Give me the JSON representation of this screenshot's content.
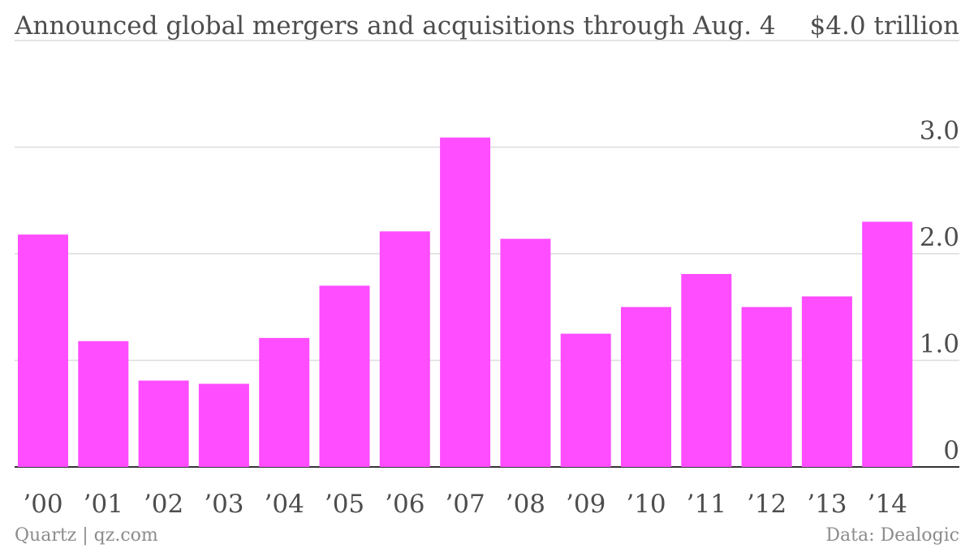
{
  "chart_data": {
    "type": "bar",
    "title": "Announced global mergers and acquisitions through Aug. 4",
    "top_axis_label": "$4.0 trillion",
    "categories": [
      "’00",
      "’01",
      "’02",
      "’03",
      "’04",
      "’05",
      "’06",
      "’07",
      "’08",
      "’09",
      "’10",
      "’11",
      "’12",
      "’13",
      "’14"
    ],
    "values": [
      2.18,
      1.18,
      0.81,
      0.78,
      1.21,
      1.7,
      2.21,
      3.09,
      2.14,
      1.25,
      1.5,
      1.81,
      1.5,
      1.6,
      2.3
    ],
    "ylim": [
      0,
      4.0
    ],
    "yticks": [
      {
        "value": 4.0,
        "label": "$4.0 trillion"
      },
      {
        "value": 3.0,
        "label": "3.0"
      },
      {
        "value": 2.0,
        "label": "2.0"
      },
      {
        "value": 1.0,
        "label": "1.0"
      },
      {
        "value": 0,
        "label": "0"
      }
    ],
    "bar_color": "#ff4dff",
    "grid": true,
    "source": "Data: Dealogic",
    "credit": "Quartz | qz.com"
  }
}
